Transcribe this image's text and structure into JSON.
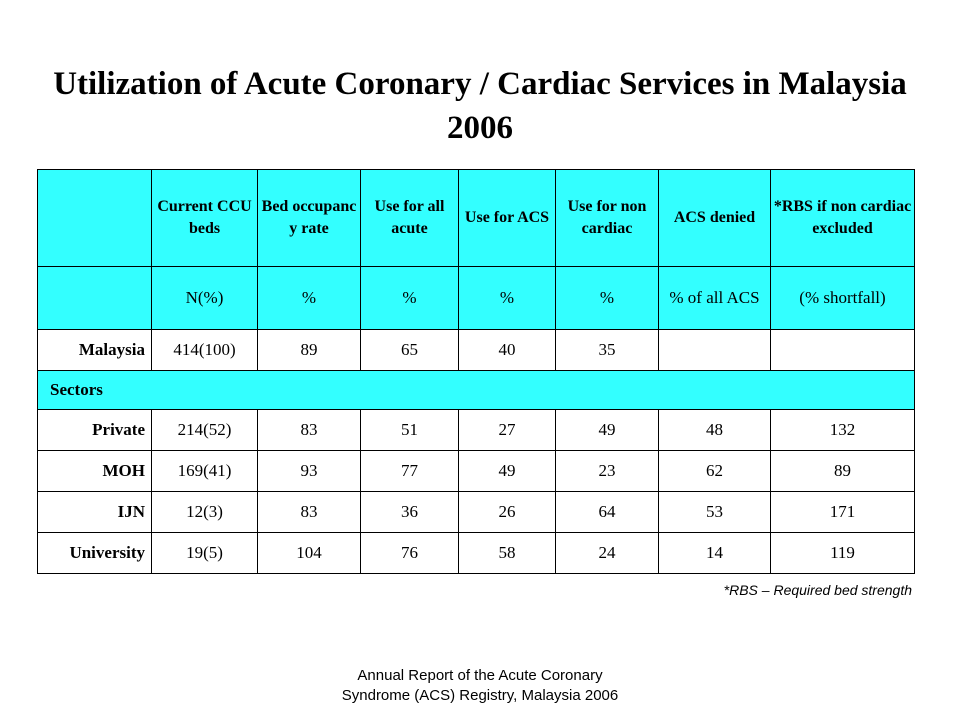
{
  "title": "Utilization of Acute Coronary / Cardiac Services in Malaysia 2006",
  "table": {
    "headers": [
      "",
      "Current CCU beds",
      "Bed occupanc y rate",
      "Use for all acute",
      "Use for ACS",
      "Use for non cardiac",
      "ACS denied",
      "*RBS if non cardiac excluded"
    ],
    "units": [
      "",
      "N(%)",
      "%",
      "%",
      "%",
      "%",
      "% of all ACS",
      "(% shortfall)"
    ],
    "malaysia": [
      "Malaysia",
      "414(100)",
      "89",
      "65",
      "40",
      "35",
      "",
      ""
    ],
    "sectors_label": "Sectors",
    "rows": [
      [
        "Private",
        "214(52)",
        "83",
        "51",
        "27",
        "49",
        "48",
        "132"
      ],
      [
        "MOH",
        "169(41)",
        "93",
        "77",
        "49",
        "23",
        "62",
        "89"
      ],
      [
        "IJN",
        "12(3)",
        "83",
        "36",
        "26",
        "64",
        "53",
        "171"
      ],
      [
        "University",
        "19(5)",
        "104",
        "76",
        "58",
        "24",
        "14",
        "119"
      ]
    ]
  },
  "note": "*RBS – Required bed strength",
  "footer": {
    "line1": "Annual Report of the Acute Coronary",
    "line2": "Syndrome (ACS) Registry, Malaysia 2006"
  },
  "colors": {
    "header_bg": "#33ffff",
    "text": "#000000"
  }
}
